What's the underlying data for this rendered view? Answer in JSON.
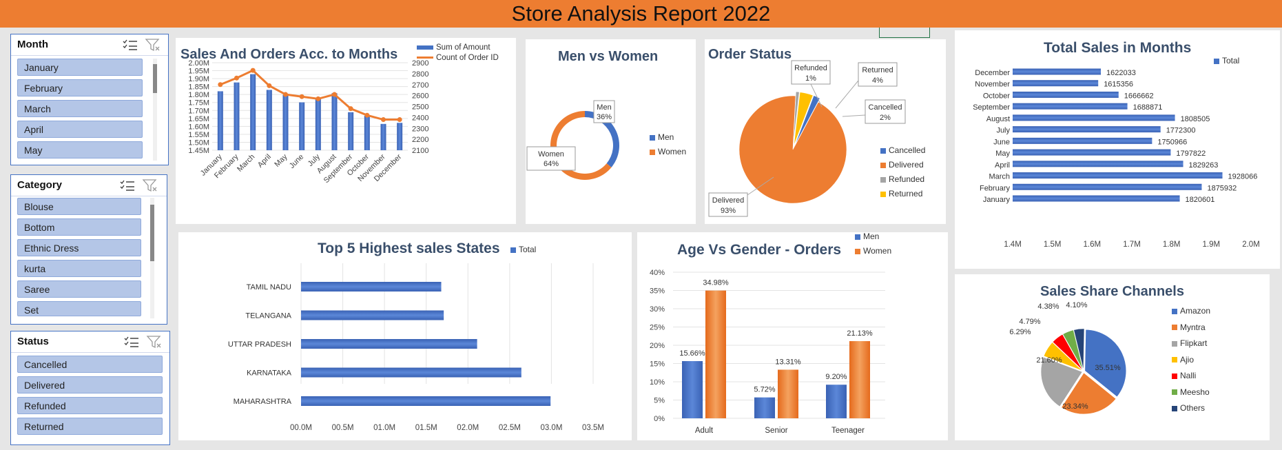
{
  "header": {
    "title": "Store Analysis Report 2022"
  },
  "slicers": {
    "month": {
      "title": "Month",
      "items": [
        "January",
        "February",
        "March",
        "April",
        "May"
      ]
    },
    "category": {
      "title": "Category",
      "items": [
        "Blouse",
        "Bottom",
        "Ethnic Dress",
        "kurta",
        "Saree",
        "Set"
      ]
    },
    "status": {
      "title": "Status",
      "items": [
        "Cancelled",
        "Delivered",
        "Refunded",
        "Returned"
      ]
    }
  },
  "charts": {
    "sales_orders": {
      "title": "Sales And Orders Acc. to Months",
      "legend": [
        "Sum of Amount",
        "Count of Order ID"
      ],
      "left_ticks": [
        "2.00M",
        "1.95M",
        "1.90M",
        "1.85M",
        "1.80M",
        "1.75M",
        "1.70M",
        "1.65M",
        "1.60M",
        "1.55M",
        "1.50M",
        "1.45M"
      ],
      "right_ticks": [
        "2900",
        "2800",
        "2700",
        "2600",
        "2500",
        "2400",
        "2300",
        "2200",
        "2100"
      ]
    },
    "men_women": {
      "title": "Men vs Women",
      "legend": [
        "Men",
        "Women"
      ],
      "labels": [
        "Men",
        "36%",
        "Women",
        "64%"
      ]
    },
    "order_status": {
      "title": "Order Status",
      "legend": [
        "Cancelled",
        "Delivered",
        "Refunded",
        "Returned"
      ],
      "labels": [
        "Refunded",
        "1%",
        "Returned",
        "4%",
        "Cancelled",
        "2%",
        "Delivered",
        "93%"
      ]
    },
    "total_sales_months": {
      "title": "Total Sales in Months",
      "legend": "Total",
      "x_ticks": [
        "1.4M",
        "1.5M",
        "1.6M",
        "1.7M",
        "1.8M",
        "1.9M",
        "2.0M"
      ]
    },
    "top_states": {
      "title": "Top 5 Highest sales States",
      "legend": "Total",
      "x_ticks": [
        "00.0M",
        "00.5M",
        "01.0M",
        "01.5M",
        "02.0M",
        "02.5M",
        "03.0M",
        "03.5M"
      ]
    },
    "age_gender": {
      "title": "Age Vs Gender - Orders",
      "legend": [
        "Men",
        "Women"
      ],
      "y_ticks": [
        "40%",
        "35%",
        "30%",
        "25%",
        "20%",
        "15%",
        "10%",
        "5%",
        "0%"
      ]
    },
    "channels": {
      "title": "Sales Share Channels"
    }
  },
  "colors": {
    "orange": "#ed7d31",
    "blue": "#4472c4",
    "grey": "#a5a5a5",
    "yellow": "#ffc000",
    "red": "#ff0000",
    "green": "#70ad47",
    "navy": "#264478"
  },
  "chart_data": [
    {
      "type": "bar",
      "title": "Sales And Orders Acc. to Months",
      "categories": [
        "January",
        "February",
        "March",
        "April",
        "May",
        "June",
        "July",
        "August",
        "September",
        "October",
        "November",
        "December"
      ],
      "series": [
        {
          "name": "Sum of Amount",
          "values": [
            1820601,
            1875932,
            1928066,
            1829263,
            1797822,
            1750966,
            1772300,
            1808505,
            1688871,
            1666662,
            1615356,
            1622033
          ]
        },
        {
          "name": "Count of Order ID",
          "values": [
            2700,
            2760,
            2830,
            2690,
            2610,
            2590,
            2570,
            2610,
            2480,
            2420,
            2380,
            2380
          ]
        }
      ],
      "ylim": [
        1450000,
        2000000
      ],
      "y2lim": [
        2100,
        2900
      ],
      "legend": "top-right"
    },
    {
      "type": "pie",
      "title": "Men vs Women",
      "categories": [
        "Men",
        "Women"
      ],
      "values": [
        36,
        64
      ],
      "legend": "right"
    },
    {
      "type": "pie",
      "title": "Order Status",
      "categories": [
        "Cancelled",
        "Delivered",
        "Refunded",
        "Returned"
      ],
      "values": [
        2,
        93,
        1,
        4
      ],
      "legend": "right"
    },
    {
      "type": "bar",
      "title": "Total Sales in Months",
      "categories": [
        "December",
        "November",
        "October",
        "September",
        "August",
        "July",
        "June",
        "May",
        "April",
        "March",
        "February",
        "January"
      ],
      "values": [
        1622033,
        1615356,
        1666662,
        1688871,
        1808505,
        1772300,
        1750966,
        1797822,
        1829263,
        1928066,
        1875932,
        1820601
      ],
      "series": [
        {
          "name": "Total",
          "values": [
            1622033,
            1615356,
            1666662,
            1688871,
            1808505,
            1772300,
            1750966,
            1797822,
            1829263,
            1928066,
            1875932,
            1820601
          ]
        }
      ],
      "xlim": [
        1400000,
        2000000
      ],
      "legend": "top-right"
    },
    {
      "type": "bar",
      "title": "Top 5 Highest sales States",
      "categories": [
        "TAMIL NADU",
        "TELANGANA",
        "UTTAR PRADESH",
        "KARNATAKA",
        "MAHARASHTRA"
      ],
      "values": [
        1.68,
        1.71,
        2.11,
        2.64,
        2.99
      ],
      "series": [
        {
          "name": "Total",
          "values": [
            1.68,
            1.71,
            2.11,
            2.64,
            2.99
          ]
        }
      ],
      "xlim": [
        0,
        3.5
      ],
      "legend": "top-right"
    },
    {
      "type": "bar",
      "title": "Age Vs Gender - Orders",
      "categories": [
        "Adult",
        "Senior",
        "Teenager"
      ],
      "series": [
        {
          "name": "Men",
          "values": [
            15.66,
            5.72,
            9.2
          ],
          "labels": [
            "15.66%",
            "5.72%",
            "9.20%"
          ]
        },
        {
          "name": "Women",
          "values": [
            34.98,
            13.31,
            21.13
          ],
          "labels": [
            "34.98%",
            "13.31%",
            "21.13%"
          ]
        }
      ],
      "ylim": [
        0,
        40
      ],
      "legend": "top"
    },
    {
      "type": "pie",
      "title": "Sales Share Channels",
      "categories": [
        "Amazon",
        "Myntra",
        "Flipkart",
        "Ajio",
        "Nalli",
        "Meesho",
        "Others"
      ],
      "values": [
        35.51,
        23.34,
        21.6,
        6.29,
        4.79,
        4.38,
        4.1
      ],
      "labels": [
        "35.51%",
        "23.34%",
        "21.60%",
        "6.29%",
        "4.79%",
        "4.38%",
        "4.10%"
      ],
      "legend": "right"
    }
  ]
}
